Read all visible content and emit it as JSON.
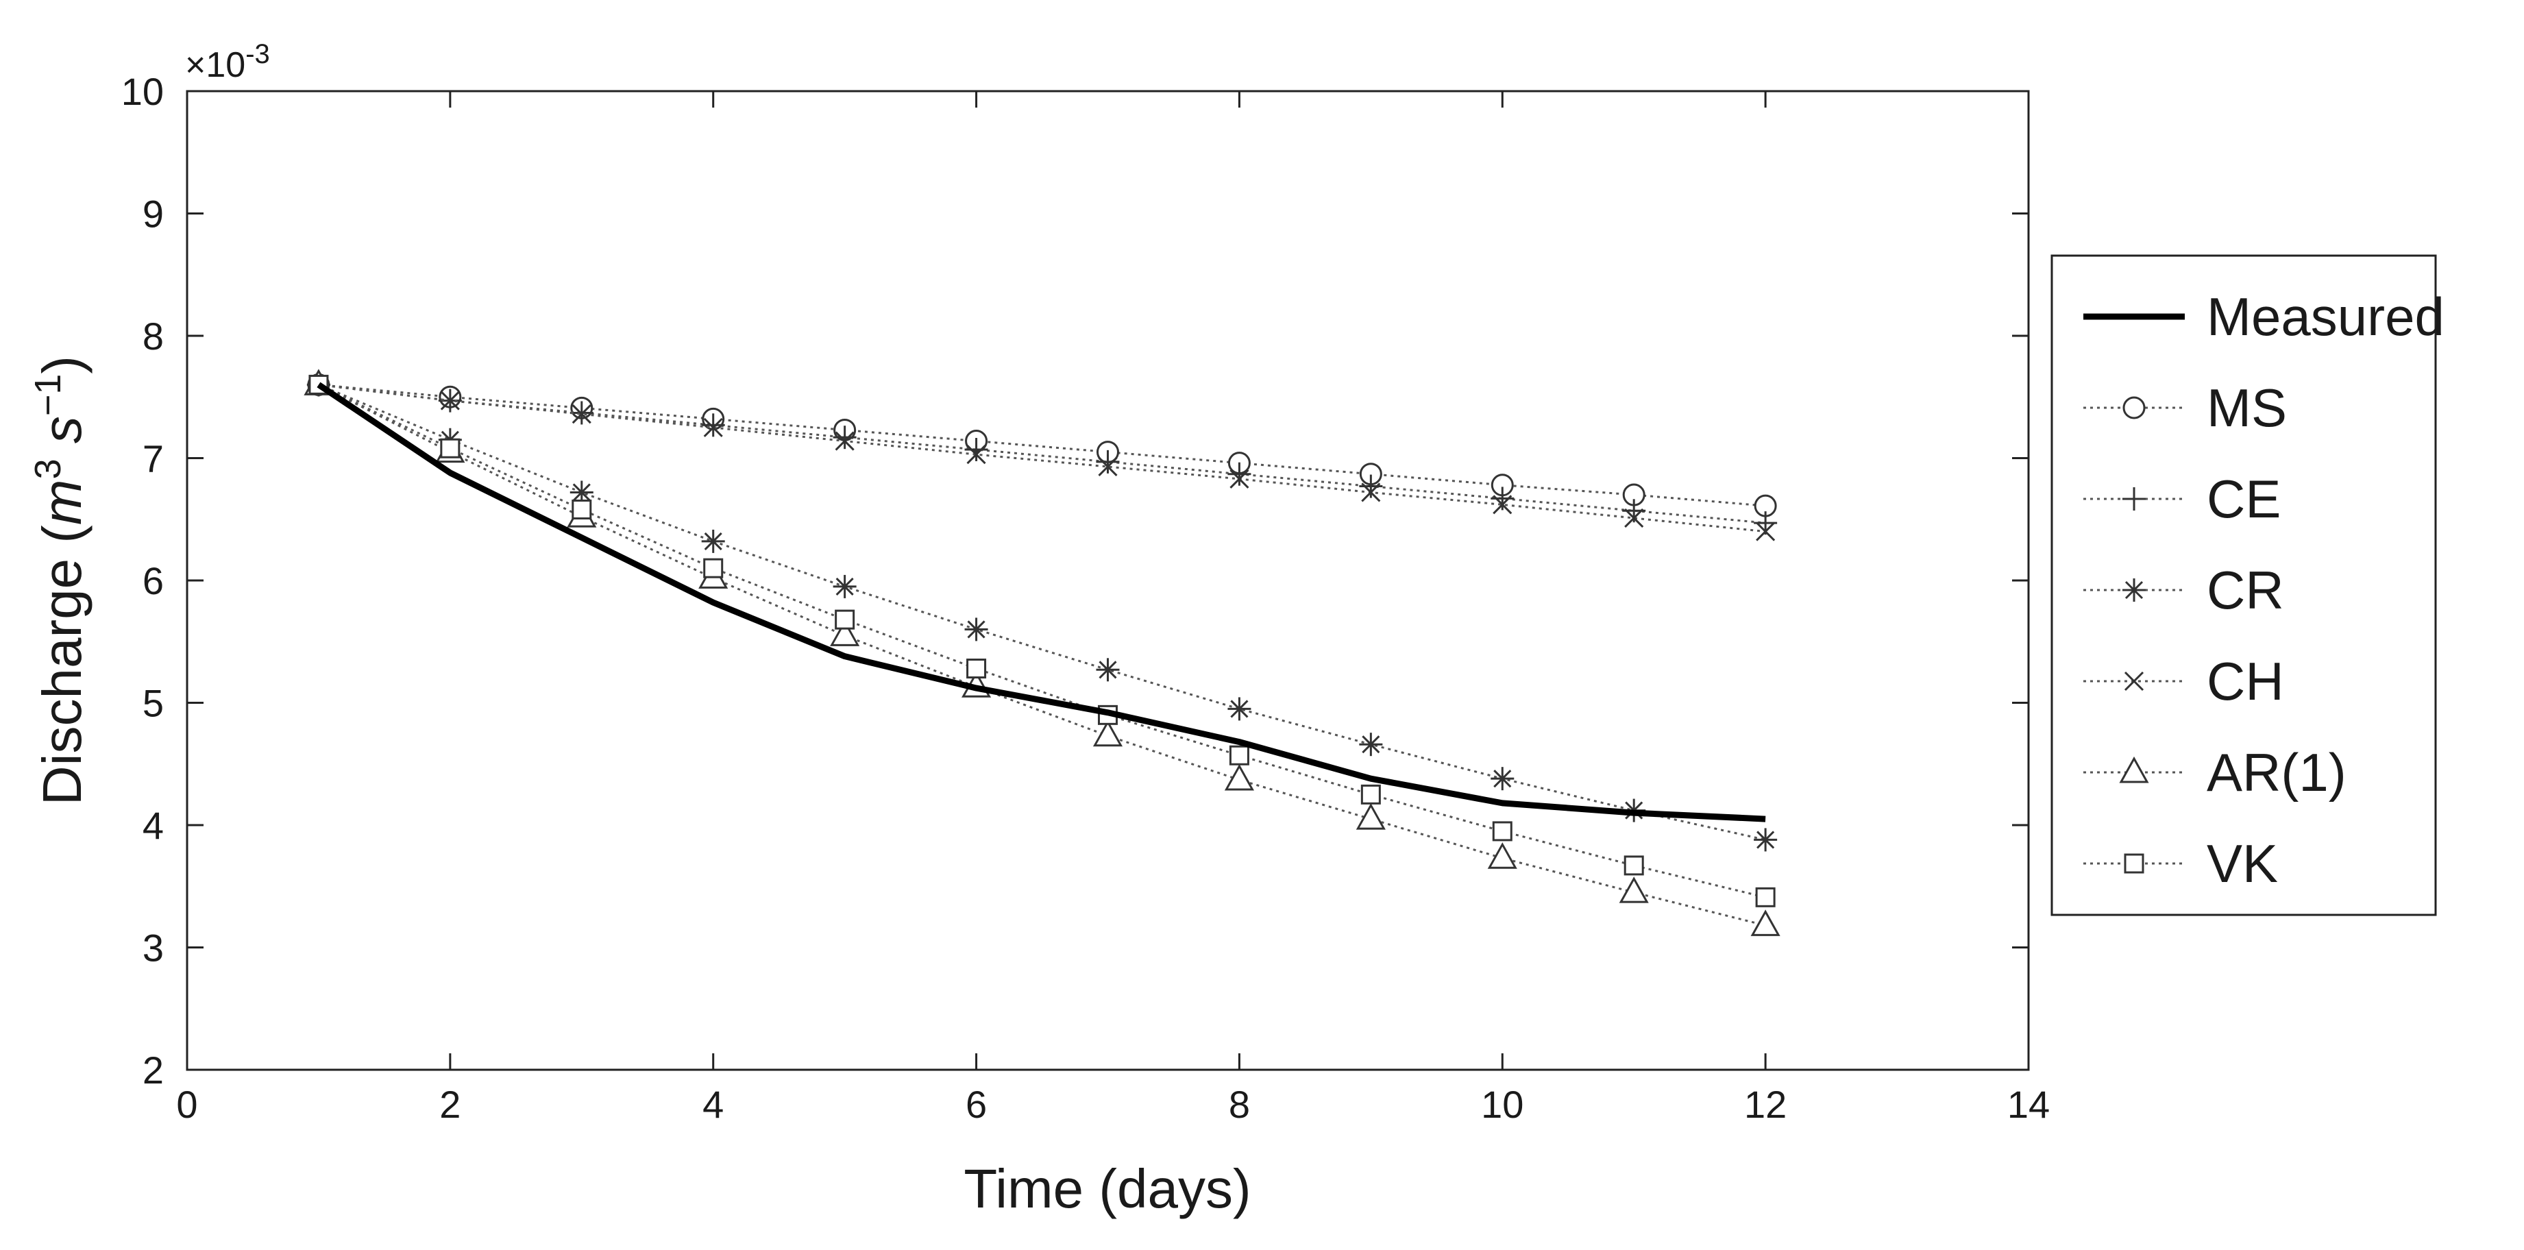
{
  "chart_data": {
    "type": "line",
    "title": "",
    "xlabel": "Time (days)",
    "ylabel": "Discharge (m³ s⁻¹)",
    "ylabel_parts": {
      "prefix": "Discharge (",
      "m": "m",
      "m_exp": "3",
      "s": " s",
      "s_exp": "−1",
      "suffix": ")"
    },
    "y_multiplier_label": "×10",
    "y_multiplier_exp": "-3",
    "xlim": [
      0,
      14
    ],
    "ylim": [
      2,
      10
    ],
    "xticks": [
      0,
      2,
      4,
      6,
      8,
      10,
      12,
      14
    ],
    "yticks": [
      2,
      3,
      4,
      5,
      6,
      7,
      8,
      9,
      10
    ],
    "grid": false,
    "legend_position": "right",
    "x": [
      1,
      2,
      3,
      4,
      5,
      6,
      7,
      8,
      9,
      10,
      11,
      12
    ],
    "series": [
      {
        "name": "Measured",
        "style": "solid",
        "marker": "none",
        "values": [
          7.6,
          6.88,
          6.35,
          5.82,
          5.38,
          5.12,
          4.92,
          4.68,
          4.38,
          4.18,
          4.1,
          4.05
        ]
      },
      {
        "name": "MS",
        "style": "dotted",
        "marker": "circle",
        "values": [
          7.6,
          7.5,
          7.41,
          7.32,
          7.23,
          7.14,
          7.05,
          6.96,
          6.87,
          6.78,
          6.7,
          6.61
        ]
      },
      {
        "name": "CE",
        "style": "dotted",
        "marker": "plus",
        "values": [
          7.6,
          7.47,
          7.37,
          7.27,
          7.17,
          7.07,
          6.97,
          6.87,
          6.77,
          6.67,
          6.57,
          6.47
        ]
      },
      {
        "name": "CR",
        "style": "dotted",
        "marker": "asterisk",
        "values": [
          7.6,
          7.15,
          6.72,
          6.32,
          5.95,
          5.6,
          5.27,
          4.95,
          4.66,
          4.38,
          4.12,
          3.88
        ]
      },
      {
        "name": "CH",
        "style": "dotted",
        "marker": "cross",
        "values": [
          7.6,
          7.47,
          7.36,
          7.25,
          7.14,
          7.03,
          6.93,
          6.83,
          6.72,
          6.62,
          6.51,
          6.4
        ]
      },
      {
        "name": "AR(1)",
        "style": "dotted",
        "marker": "triangle",
        "values": [
          7.6,
          7.05,
          6.52,
          6.02,
          5.55,
          5.13,
          4.73,
          4.37,
          4.05,
          3.73,
          3.45,
          3.18
        ]
      },
      {
        "name": "VK",
        "style": "dotted",
        "marker": "square",
        "values": [
          7.6,
          7.08,
          6.58,
          6.1,
          5.68,
          5.28,
          4.9,
          4.57,
          4.25,
          3.95,
          3.67,
          3.41
        ]
      }
    ]
  }
}
